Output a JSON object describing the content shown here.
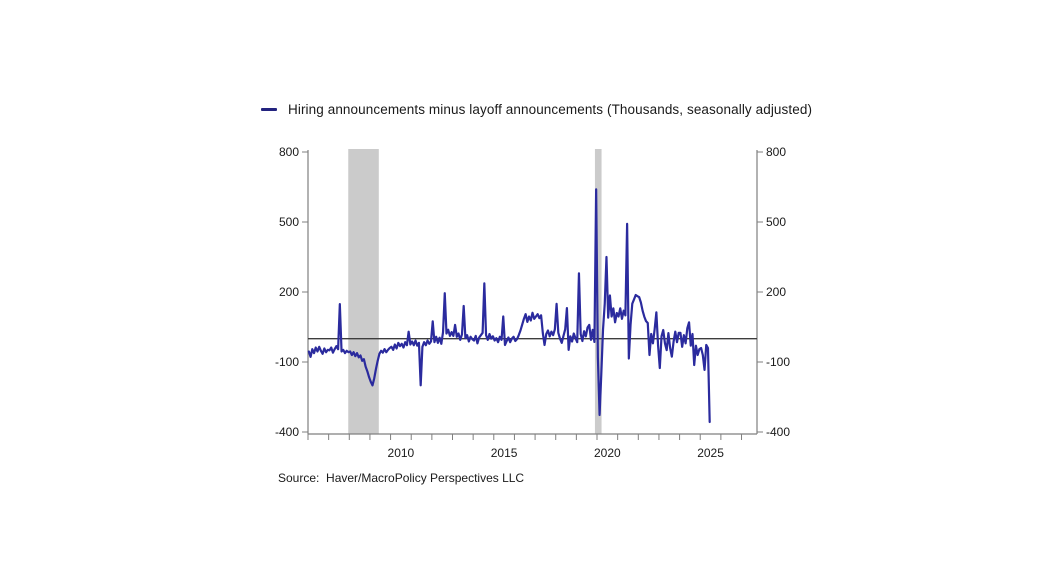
{
  "page": {
    "background": "#ffffff"
  },
  "legend": {
    "label": "Hiring announcements minus layoff announcements (Thousands, seasonally adjusted)",
    "marker_color": "#23237f"
  },
  "source": {
    "text": "Source:  Haver/MacroPolicy Perspectives LLC"
  },
  "chart_data": {
    "type": "line",
    "title": "",
    "ylabel": "Thousands, seasonally adjusted",
    "ylim": [
      -400,
      800
    ],
    "yticks": [
      "800",
      "500",
      "200",
      "-100",
      "-400"
    ],
    "ytick_values": [
      800,
      500,
      200,
      -100,
      -400
    ],
    "x_range": [
      2006,
      2027.75
    ],
    "x_minor_tick_every_years": 1,
    "x_labeled_years": [
      "2010",
      "2015",
      "2020",
      "2025"
    ],
    "x_labeled_year_values": [
      2010,
      2015,
      2020,
      2025
    ],
    "grid": false,
    "zero_line": true,
    "legend_position": "top",
    "zero_line_color": "#3d3d3d",
    "axis_color": "#7f7f7f",
    "band_color": "#cbcbcb",
    "recession_bands_years": [
      [
        2007.95,
        2009.43
      ],
      [
        2019.9,
        2020.22
      ]
    ],
    "series": [
      {
        "name": "Hiring announcements minus layoff announcements",
        "color": "#2b2b9e",
        "frequency": "monthly",
        "start": "2006-01",
        "end": "2025-06",
        "start_year": 2006,
        "values": [
          -55,
          -78,
          -45,
          -62,
          -38,
          -55,
          -35,
          -52,
          -65,
          -42,
          -58,
          -48,
          -50,
          -38,
          -60,
          -45,
          -32,
          -45,
          148,
          -55,
          -48,
          -62,
          -52,
          -58,
          -55,
          -70,
          -58,
          -75,
          -62,
          -80,
          -72,
          -95,
          -88,
          -120,
          -140,
          -165,
          -185,
          -200,
          -170,
          -130,
          -95,
          -65,
          -52,
          -60,
          -45,
          -58,
          -48,
          -40,
          -35,
          -48,
          -25,
          -42,
          -18,
          -32,
          -22,
          -38,
          -15,
          -28,
          30,
          -25,
          -12,
          -28,
          -8,
          -30,
          -18,
          -200,
          -35,
          -15,
          -28,
          -8,
          -22,
          -12,
          74,
          -15,
          8,
          -18,
          4,
          -22,
          28,
          195,
          22,
          38,
          12,
          28,
          12,
          59,
          8,
          22,
          -5,
          18,
          140,
          2,
          15,
          -12,
          8,
          -2,
          -8,
          12,
          -20,
          5,
          15,
          25,
          237,
          15,
          -5,
          20,
          0,
          10,
          -8,
          2,
          -15,
          8,
          -5,
          95,
          -27,
          -10,
          5,
          -15,
          0,
          8,
          -10,
          -2,
          15,
          35,
          60,
          85,
          105,
          72,
          95,
          78,
          111,
          85,
          95,
          105,
          88,
          100,
          24,
          -27,
          20,
          35,
          10,
          30,
          15,
          40,
          149,
          25,
          0,
          -18,
          12,
          40,
          131,
          -48,
          10,
          -12,
          22,
          2,
          -15,
          280,
          20,
          -10,
          32,
          10,
          48,
          59,
          -5,
          38,
          -14,
          640,
          -80,
          -327,
          -150,
          40,
          150,
          350,
          90,
          185,
          95,
          130,
          70,
          110,
          95,
          130,
          85,
          120,
          100,
          492,
          -85,
          60,
          150,
          168,
          187,
          182,
          178,
          155,
          120,
          94,
          75,
          67,
          -70,
          20,
          -20,
          40,
          113,
          -30,
          -126,
          10,
          37,
          -20,
          -49,
          24,
          -40,
          -77,
          -13,
          30,
          -15,
          25,
          25,
          -35,
          15,
          -20,
          45,
          70,
          -30,
          20,
          -113,
          -30,
          -70,
          -45,
          -40,
          -70,
          -134,
          -27,
          -40,
          -357
        ]
      }
    ]
  }
}
